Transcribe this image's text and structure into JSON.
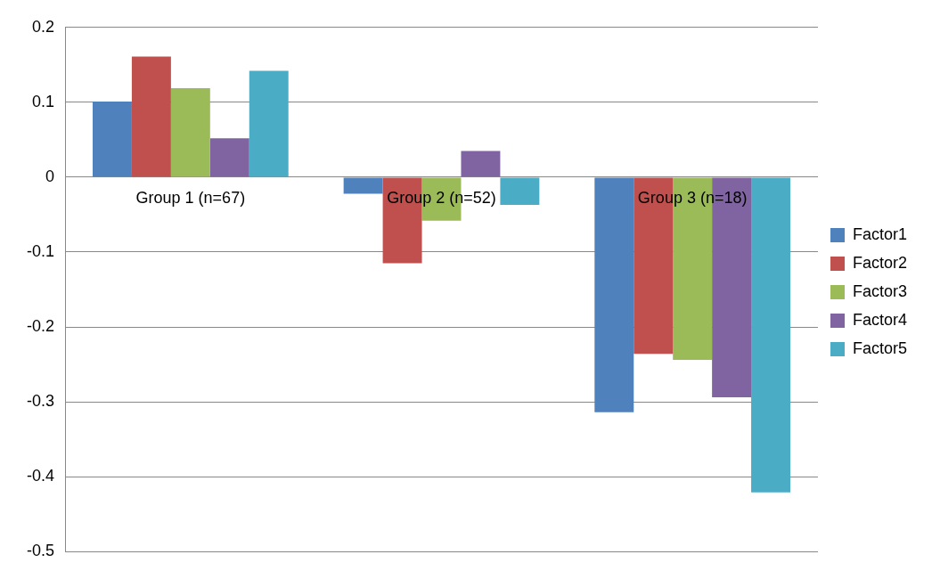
{
  "chart_data": {
    "type": "bar",
    "categories": [
      "Group 1 (n=67)",
      "Group 2 (n=52)",
      "Group 3 (n=18)"
    ],
    "series": [
      {
        "name": "Factor1",
        "color": "#4f81bd",
        "values": [
          0.101,
          -0.022,
          -0.314
        ]
      },
      {
        "name": "Factor2",
        "color": "#c0504d",
        "values": [
          0.161,
          -0.115,
          -0.236
        ]
      },
      {
        "name": "Factor3",
        "color": "#9bbb59",
        "values": [
          0.119,
          -0.058,
          -0.244
        ]
      },
      {
        "name": "Factor4",
        "color": "#8064a2",
        "values": [
          0.052,
          0.035,
          -0.294
        ]
      },
      {
        "name": "Factor5",
        "color": "#4bacc6",
        "values": [
          0.142,
          -0.037,
          -0.421
        ]
      }
    ],
    "ylim": [
      -0.5,
      0.2
    ],
    "yticks": [
      -0.5,
      -0.4,
      -0.3,
      -0.2,
      -0.1,
      0,
      0.1,
      0.2
    ],
    "grid": "y",
    "legend": "right"
  }
}
